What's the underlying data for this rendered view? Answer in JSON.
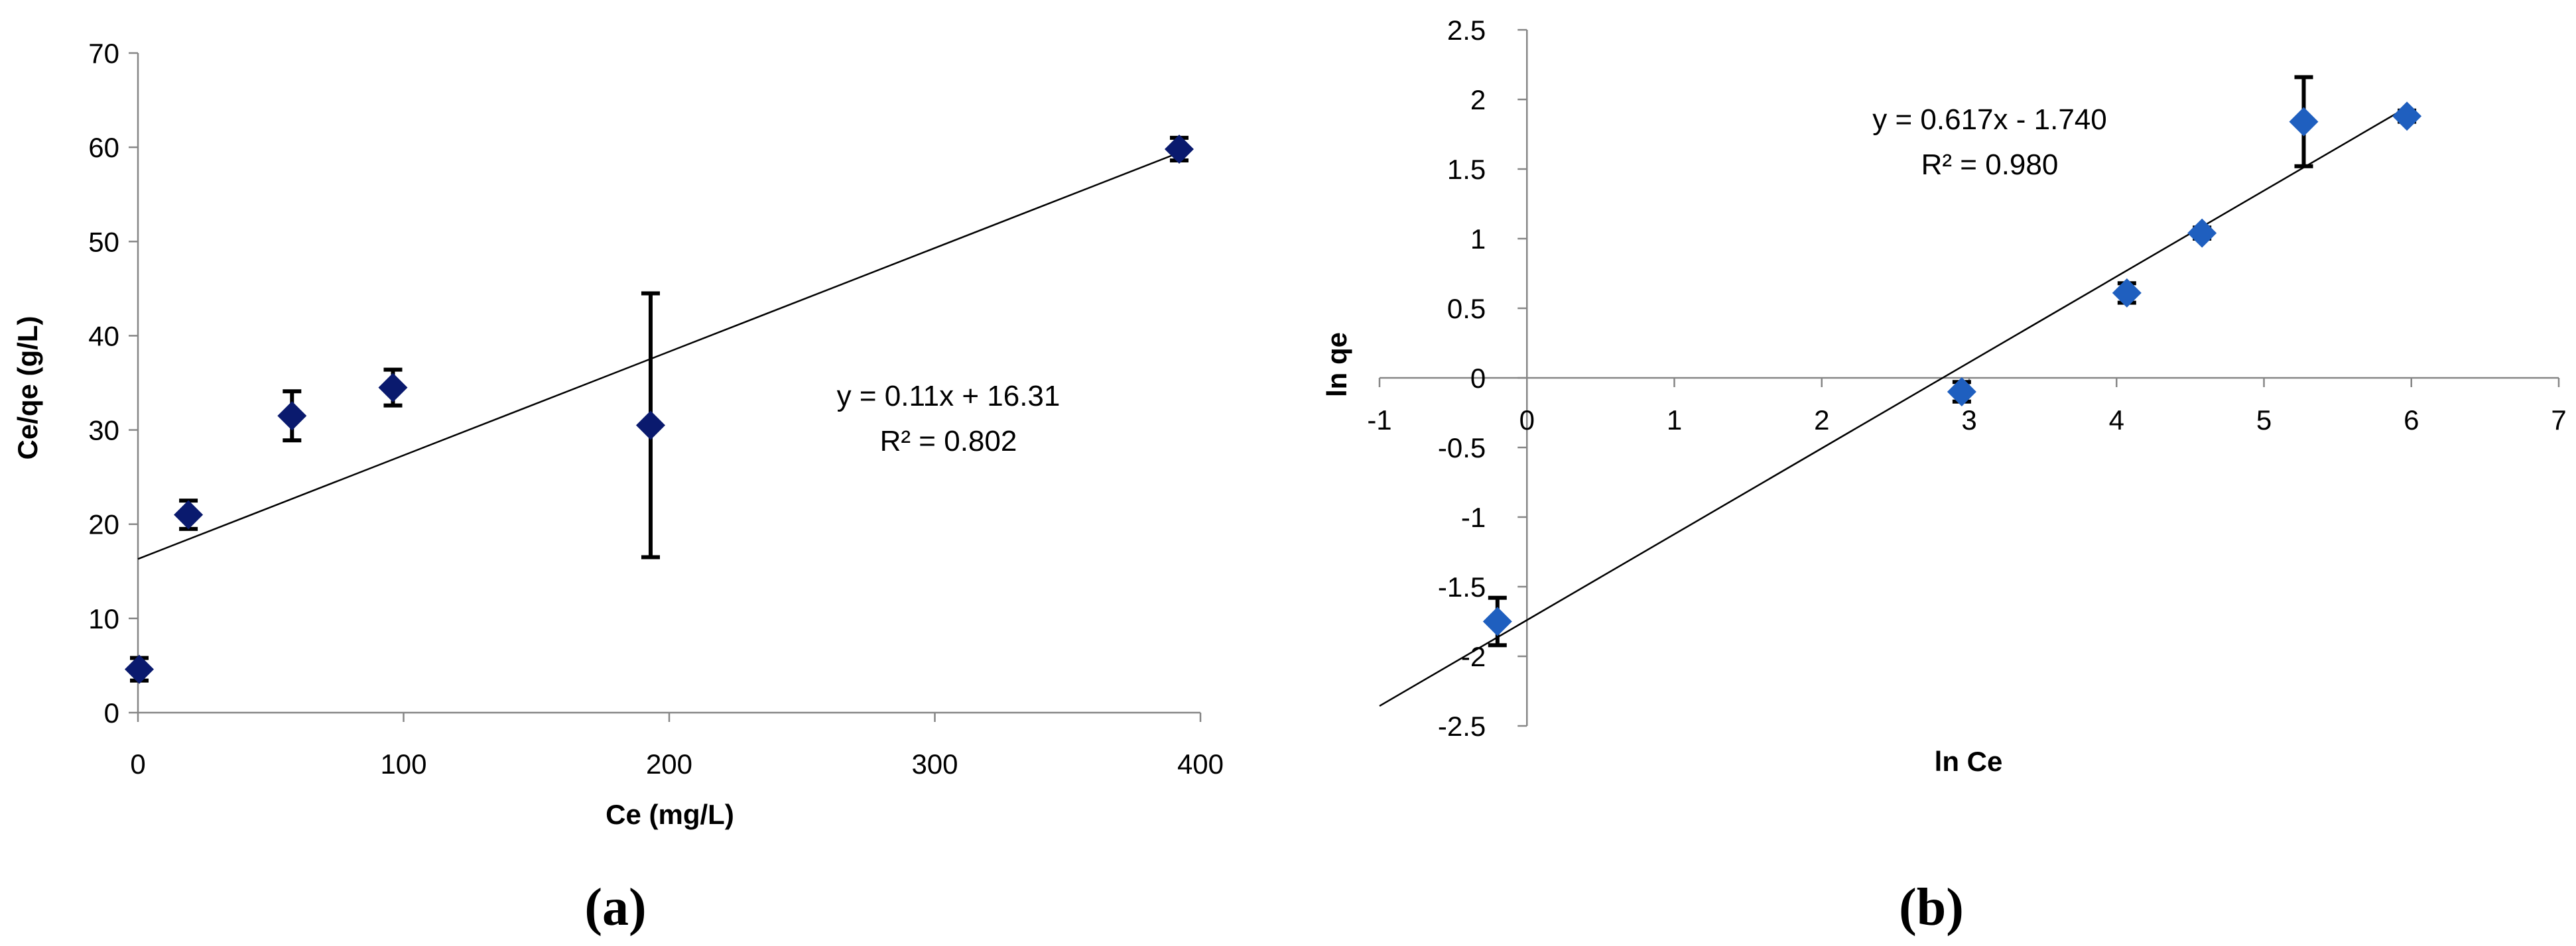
{
  "chart_data": [
    {
      "id": "a",
      "type": "scatter",
      "panel_label": "(a)",
      "xlabel": "Ce (mg/L)",
      "ylabel": "Ce/qe (g/L)",
      "xlim": [
        0,
        400
      ],
      "ylim": [
        0,
        70
      ],
      "xticks": [
        0,
        100,
        200,
        300,
        400
      ],
      "yticks": [
        0,
        10,
        20,
        30,
        40,
        50,
        60,
        70
      ],
      "grid": false,
      "legend": "none",
      "marker_color": "#0a1a6e",
      "series": [
        {
          "points": [
            {
              "x": 0.5,
              "y": 4.6,
              "err": 1.2
            },
            {
              "x": 19,
              "y": 21,
              "err": 1.5
            },
            {
              "x": 58,
              "y": 31.5,
              "err": 2.6
            },
            {
              "x": 96,
              "y": 34.5,
              "err": 1.9
            },
            {
              "x": 193,
              "y": 30.5,
              "err": 14
            },
            {
              "x": 392,
              "y": 59.8,
              "err": 1.2
            }
          ]
        }
      ],
      "trendline": {
        "slope": 0.11,
        "intercept": 16.31,
        "x_range": [
          0,
          392
        ]
      },
      "equation": "y = 0.11x + 16.31",
      "r2": "R² = 0.802"
    },
    {
      "id": "b",
      "type": "scatter",
      "panel_label": "(b)",
      "xlabel": "ln Ce",
      "ylabel": "ln qe",
      "xlim": [
        -1,
        7
      ],
      "ylim": [
        -2.5,
        2.5
      ],
      "xticks": [
        -1,
        0,
        1,
        2,
        3,
        4,
        5,
        6,
        7
      ],
      "yticks": [
        -2.5,
        -2,
        -1.5,
        -1,
        -0.5,
        0,
        0.5,
        1,
        1.5,
        2,
        2.5
      ],
      "x_tick_labels": [
        "-1",
        "0",
        "1",
        "2",
        "3",
        "4",
        "5",
        "6",
        "7"
      ],
      "y_tick_labels": [
        "-2.5",
        "-2",
        "-1.5",
        "-1",
        "-0.5",
        "0",
        "0.5",
        "1",
        "1.5",
        "2",
        "2.5"
      ],
      "grid": false,
      "legend": "none",
      "marker_color": "#1f5fbf",
      "series": [
        {
          "points": [
            {
              "x": -0.2,
              "y": -1.75,
              "err": 0.17
            },
            {
              "x": 2.95,
              "y": -0.1,
              "err": 0.07
            },
            {
              "x": 4.07,
              "y": 0.61,
              "err": 0.07
            },
            {
              "x": 4.58,
              "y": 1.04,
              "err": 0.04
            },
            {
              "x": 5.27,
              "y": 1.84,
              "err": 0.32
            },
            {
              "x": 5.97,
              "y": 1.88,
              "err": 0.04
            }
          ]
        }
      ],
      "trendline": {
        "slope": 0.617,
        "intercept": -1.74,
        "x_range": [
          -1,
          5.97
        ]
      },
      "equation": "y = 0.617x - 1.740",
      "r2": "R² = 0.980"
    }
  ]
}
